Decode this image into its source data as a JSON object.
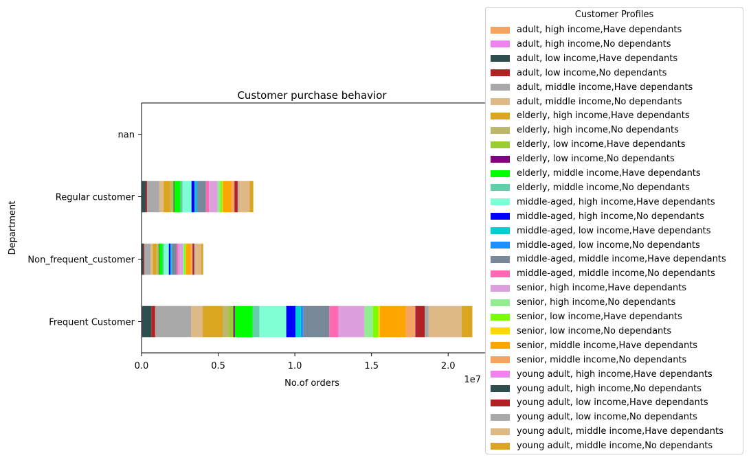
{
  "chart_data": {
    "type": "bar",
    "orientation": "horizontal",
    "stacked": true,
    "title": "Customer purchase behavior",
    "xlabel": "No.of orders",
    "ylabel": "Department",
    "x_offset_label": "1e7",
    "xlim": [
      0,
      22500000
    ],
    "xticks": [
      0,
      5000000,
      10000000,
      15000000,
      20000000
    ],
    "xtick_labels": [
      "0.0",
      "0.5",
      "1.0",
      "1.5",
      "2.0"
    ],
    "categories": [
      "Frequent Customer",
      "Non_frequent_customer",
      "Regular customer",
      "nan"
    ],
    "legend_title": "Customer Profiles",
    "legend_position": "outside-right",
    "grid": false,
    "series": [
      {
        "name": "adult, high income,Have dependants",
        "color": "#f4a460",
        "values": [
          20000,
          10000,
          15000,
          0
        ]
      },
      {
        "name": "adult, high income,No dependants",
        "color": "#ee82ee",
        "values": [
          20000,
          10000,
          15000,
          0
        ]
      },
      {
        "name": "adult, low income,Have dependants",
        "color": "#2f4f4f",
        "values": [
          600000,
          110000,
          250000,
          0
        ]
      },
      {
        "name": "adult, low income,No dependants",
        "color": "#b22222",
        "values": [
          250000,
          50000,
          80000,
          0
        ]
      },
      {
        "name": "adult, middle income,Have dependants",
        "color": "#a9a9a9",
        "values": [
          2350000,
          400000,
          800000,
          0
        ]
      },
      {
        "name": "adult, middle income,No dependants",
        "color": "#deb887",
        "values": [
          750000,
          150000,
          280000,
          0
        ]
      },
      {
        "name": "elderly, high income,Have dependants",
        "color": "#daa520",
        "values": [
          1300000,
          250000,
          420000,
          0
        ]
      },
      {
        "name": "elderly, high income,No dependants",
        "color": "#bdb76b",
        "values": [
          400000,
          80000,
          130000,
          0
        ]
      },
      {
        "name": "elderly, low income,Have dependants",
        "color": "#9acd32",
        "values": [
          300000,
          60000,
          100000,
          0
        ]
      },
      {
        "name": "elderly, low income,No dependants",
        "color": "#800080",
        "values": [
          100000,
          30000,
          40000,
          0
        ]
      },
      {
        "name": "elderly, middle income,Have dependants",
        "color": "#00ff00",
        "values": [
          1150000,
          220000,
          400000,
          0
        ]
      },
      {
        "name": "elderly, middle income,No dependants",
        "color": "#66cdaa",
        "values": [
          450000,
          90000,
          150000,
          0
        ]
      },
      {
        "name": "middle-aged, high income,Have dependants",
        "color": "#7fffd4",
        "values": [
          1750000,
          320000,
          580000,
          0
        ]
      },
      {
        "name": "middle-aged, high income,No dependants",
        "color": "#0000ff",
        "values": [
          600000,
          110000,
          200000,
          0
        ]
      },
      {
        "name": "middle-aged, low income,Have dependants",
        "color": "#00ced1",
        "values": [
          350000,
          70000,
          120000,
          0
        ]
      },
      {
        "name": "middle-aged, low income,No dependants",
        "color": "#1e90ff",
        "values": [
          150000,
          30000,
          50000,
          0
        ]
      },
      {
        "name": "middle-aged, middle income,Have dependants",
        "color": "#778899",
        "values": [
          1700000,
          300000,
          570000,
          0
        ]
      },
      {
        "name": "middle-aged, middle income,No dependants",
        "color": "#ff69b4",
        "values": [
          600000,
          110000,
          200000,
          0
        ]
      },
      {
        "name": "senior, high income,Have dependants",
        "color": "#dda0dd",
        "values": [
          1700000,
          300000,
          560000,
          0
        ]
      },
      {
        "name": "senior, high income,No dependants",
        "color": "#90ee90",
        "values": [
          550000,
          100000,
          180000,
          0
        ]
      },
      {
        "name": "senior, low income,Have dependants",
        "color": "#7cfc00",
        "values": [
          350000,
          70000,
          120000,
          0
        ]
      },
      {
        "name": "senior, low income,No dependants",
        "color": "#ffd700",
        "values": [
          100000,
          30000,
          40000,
          0
        ]
      },
      {
        "name": "senior, middle income,Have dependants",
        "color": "#ffa500",
        "values": [
          1700000,
          300000,
          550000,
          0
        ]
      },
      {
        "name": "senior, middle income,No dependants",
        "color": "#f4a460",
        "values": [
          600000,
          110000,
          200000,
          0
        ]
      },
      {
        "name": "young adult, high income,Have dependants",
        "color": "#ee82ee",
        "values": [
          20000,
          10000,
          10000,
          0
        ]
      },
      {
        "name": "young adult, high income,No dependants",
        "color": "#2f4f4f",
        "values": [
          20000,
          10000,
          10000,
          0
        ]
      },
      {
        "name": "young adult, low income,Have dependants",
        "color": "#b22222",
        "values": [
          600000,
          110000,
          200000,
          0
        ]
      },
      {
        "name": "young adult, low income,No dependants",
        "color": "#a9a9a9",
        "values": [
          250000,
          50000,
          80000,
          0
        ]
      },
      {
        "name": "young adult, middle income,Have dependants",
        "color": "#deb887",
        "values": [
          2150000,
          400000,
          700000,
          0
        ]
      },
      {
        "name": "young adult, middle income,No dependants",
        "color": "#daa520",
        "values": [
          700000,
          130000,
          240000,
          0
        ]
      }
    ]
  }
}
